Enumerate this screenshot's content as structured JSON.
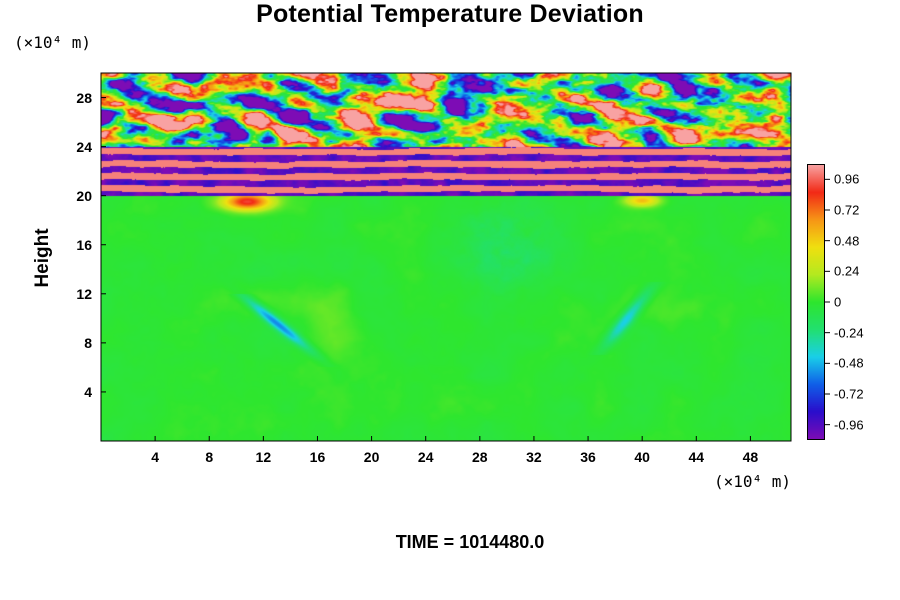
{
  "chart_data": {
    "type": "heatmap",
    "title": "Potential Temperature Deviation",
    "ylabel": "Height",
    "y_unit": "(×10⁴ m)",
    "x_unit": "(×10⁴ m)",
    "xlim": [
      0,
      51
    ],
    "ylim": [
      0,
      30
    ],
    "x_ticks": [
      "4",
      "8",
      "12",
      "16",
      "20",
      "24",
      "28",
      "32",
      "36",
      "40",
      "44",
      "48"
    ],
    "x_tick_values": [
      4,
      8,
      12,
      16,
      20,
      24,
      28,
      32,
      36,
      40,
      44,
      48
    ],
    "y_ticks": [
      "4",
      "8",
      "12",
      "16",
      "20",
      "24",
      "28"
    ],
    "y_tick_values": [
      4,
      8,
      12,
      16,
      20,
      24,
      28
    ],
    "colorbar": {
      "range": [
        -1.08,
        1.08
      ],
      "ticks": [
        "0.96",
        "0.72",
        "0.48",
        "0.24",
        "0",
        "-0.24",
        "-0.48",
        "-0.72",
        "-0.96"
      ],
      "tick_values": [
        0.96,
        0.72,
        0.48,
        0.24,
        0,
        -0.24,
        -0.48,
        -0.72,
        -0.96
      ],
      "colors": [
        "#7d0cb5",
        "#2a0ecc",
        "#1060e8",
        "#1ad0e8",
        "#22e070",
        "#2ee62e",
        "#b4ea20",
        "#f0e010",
        "#f79616",
        "#f22a16",
        "#f8a2a2"
      ]
    },
    "grid": false,
    "field_summary": "Near-zero deviation below ~20 (green); strongly alternating saturated bands between 20 and 24; chaotic ±0.96 patches above 24; negative plumes near x≈16 and x≈39 around height 8–12; weak negative region near x≈30 around height 14–18",
    "annotation": "TIME = 1014480.0"
  }
}
